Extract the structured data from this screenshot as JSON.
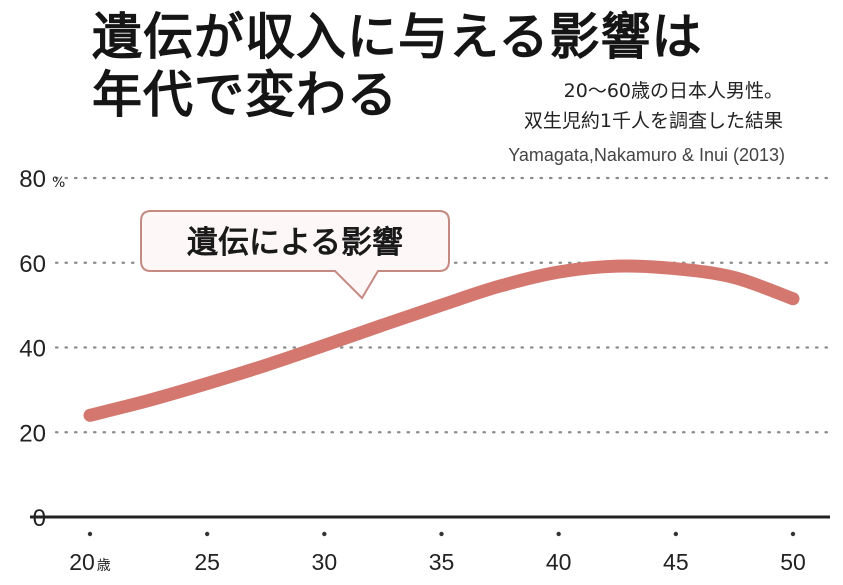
{
  "header": {
    "title_line1": "遺伝が収入に与える影響は",
    "title_line2": "年代で変わる",
    "note_line1": "20～60歳の日本人男性。",
    "note_line2": "双生児約1千人を調査した結果",
    "source": "Yamagata,Nakamuro & Inui (2013)"
  },
  "chart_data": {
    "type": "line",
    "title": "遺伝が収入に与える影響は年代で変わる",
    "xlabel": "",
    "ylabel": "",
    "x": [
      20,
      25,
      30,
      35,
      40,
      45,
      50
    ],
    "x_tick_labels": [
      "20",
      "25",
      "30",
      "35",
      "40",
      "45",
      "50"
    ],
    "x_unit": "歳",
    "y_ticks": [
      0,
      20,
      40,
      60,
      80
    ],
    "y_unit": "%",
    "ylim": [
      0,
      80
    ],
    "xlim": [
      20,
      50
    ],
    "grid": true,
    "series": [
      {
        "name": "遺伝による影響",
        "color": "#d4776f",
        "x": [
          20,
          22.5,
          25,
          27.5,
          30,
          32.5,
          35,
          37.5,
          40,
          42.5,
          45,
          47.5,
          50
        ],
        "values": [
          24,
          27.5,
          31.5,
          35.8,
          40.5,
          45.3,
          50,
          54.5,
          57.8,
          59.2,
          58.6,
          56.5,
          51.5
        ]
      }
    ],
    "callout": "遺伝による影響"
  }
}
